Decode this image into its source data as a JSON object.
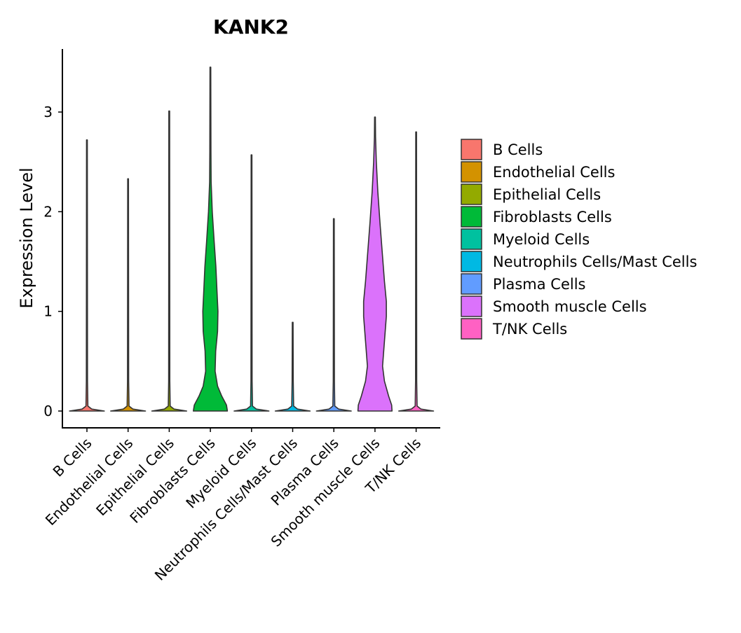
{
  "chart_data": {
    "type": "violin",
    "title": "KANK2",
    "xlabel": "",
    "ylabel": "Expression Level",
    "ylim": [
      -0.17,
      3.65
    ],
    "yticks": [
      0,
      1,
      2,
      3
    ],
    "ytick_labels": [
      "0",
      "1",
      "2",
      "3"
    ],
    "categories": [
      "B Cells",
      "Endothelial Cells",
      "Epithelial Cells",
      "Fibroblasts Cells",
      "Myeloid Cells",
      "Neutrophils Cells/Mast Cells",
      "Plasma Cells",
      "Smooth muscle Cells",
      "T/NK Cells"
    ],
    "colors": [
      "#F8766D",
      "#D39200",
      "#93AA00",
      "#00BA38",
      "#00C19F",
      "#00B9E3",
      "#619CFF",
      "#DB72FB",
      "#FF61C3"
    ],
    "max_values": [
      2.72,
      2.33,
      3.01,
      3.45,
      2.57,
      0.89,
      1.93,
      2.95,
      2.8
    ],
    "violins": [
      {
        "name": "B Cells",
        "density": [
          [
            0,
            0.92
          ],
          [
            0.02,
            0.25
          ],
          [
            0.05,
            0.05
          ],
          [
            0.3,
            0.03
          ],
          [
            2.72,
            0.02
          ]
        ]
      },
      {
        "name": "Endothelial Cells",
        "density": [
          [
            0,
            0.92
          ],
          [
            0.02,
            0.25
          ],
          [
            0.05,
            0.05
          ],
          [
            0.3,
            0.03
          ],
          [
            2.33,
            0.02
          ]
        ]
      },
      {
        "name": "Epithelial Cells",
        "density": [
          [
            0,
            0.92
          ],
          [
            0.02,
            0.25
          ],
          [
            0.05,
            0.05
          ],
          [
            0.3,
            0.03
          ],
          [
            3.01,
            0.02
          ]
        ]
      },
      {
        "name": "Fibroblasts Cells",
        "density": [
          [
            0,
            0.9
          ],
          [
            0.06,
            0.85
          ],
          [
            0.15,
            0.6
          ],
          [
            0.25,
            0.38
          ],
          [
            0.4,
            0.25
          ],
          [
            0.6,
            0.28
          ],
          [
            0.8,
            0.38
          ],
          [
            1.0,
            0.4
          ],
          [
            1.2,
            0.35
          ],
          [
            1.45,
            0.29
          ],
          [
            1.7,
            0.2
          ],
          [
            2.0,
            0.1
          ],
          [
            2.3,
            0.04
          ],
          [
            2.6,
            0.03
          ],
          [
            3.45,
            0.02
          ]
        ]
      },
      {
        "name": "Myeloid Cells",
        "density": [
          [
            0,
            0.92
          ],
          [
            0.02,
            0.25
          ],
          [
            0.05,
            0.05
          ],
          [
            0.3,
            0.03
          ],
          [
            2.57,
            0.02
          ]
        ]
      },
      {
        "name": "Neutrophils Cells/Mast Cells",
        "density": [
          [
            0,
            0.92
          ],
          [
            0.02,
            0.25
          ],
          [
            0.05,
            0.05
          ],
          [
            0.3,
            0.03
          ],
          [
            0.89,
            0.02
          ]
        ]
      },
      {
        "name": "Plasma Cells",
        "density": [
          [
            0,
            0.92
          ],
          [
            0.02,
            0.25
          ],
          [
            0.05,
            0.05
          ],
          [
            0.3,
            0.03
          ],
          [
            1.93,
            0.02
          ]
        ]
      },
      {
        "name": "Smooth muscle Cells",
        "density": [
          [
            0,
            0.9
          ],
          [
            0.06,
            0.88
          ],
          [
            0.15,
            0.72
          ],
          [
            0.3,
            0.5
          ],
          [
            0.45,
            0.4
          ],
          [
            0.7,
            0.5
          ],
          [
            0.95,
            0.6
          ],
          [
            1.1,
            0.6
          ],
          [
            1.3,
            0.5
          ],
          [
            1.6,
            0.38
          ],
          [
            1.9,
            0.26
          ],
          [
            2.2,
            0.15
          ],
          [
            2.5,
            0.07
          ],
          [
            2.75,
            0.03
          ],
          [
            2.95,
            0.02
          ]
        ]
      },
      {
        "name": "T/NK Cells",
        "density": [
          [
            0,
            0.92
          ],
          [
            0.02,
            0.25
          ],
          [
            0.05,
            0.05
          ],
          [
            0.3,
            0.03
          ],
          [
            2.8,
            0.02
          ]
        ]
      }
    ],
    "legend": {
      "position": "right",
      "entries": [
        "B Cells",
        "Endothelial Cells",
        "Epithelial Cells",
        "Fibroblasts Cells",
        "Myeloid Cells",
        "Neutrophils Cells/Mast Cells",
        "Plasma Cells",
        "Smooth muscle Cells",
        "T/NK Cells"
      ]
    },
    "grid": false
  }
}
